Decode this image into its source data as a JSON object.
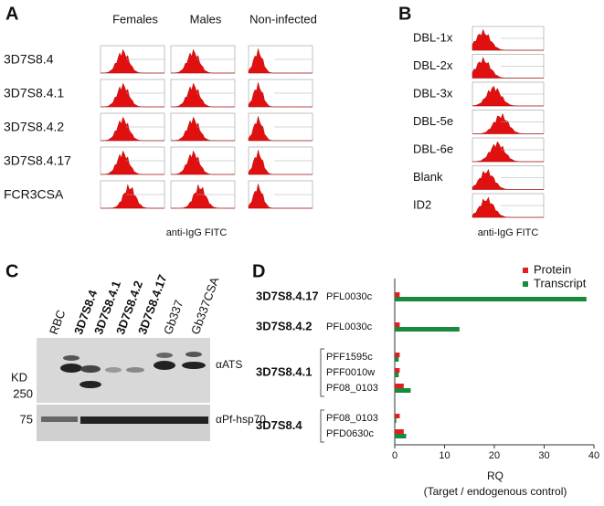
{
  "panels": {
    "A": {
      "label": "A",
      "columns": [
        "Females",
        "Males",
        "Non-infected"
      ],
      "rows": [
        "3D7S8.4",
        "3D7S8.4.1",
        "3D7S8.4.2",
        "3D7S8.4.17",
        "FCR3CSA"
      ],
      "xlabel": "anti-IgG FITC"
    },
    "B": {
      "label": "B",
      "rows": [
        "DBL-1x",
        "DBL-2x",
        "DBL-3x",
        "DBL-5e",
        "DBL-6e",
        "Blank",
        "ID2"
      ],
      "xlabel": "anti-IgG FITC"
    },
    "C": {
      "label": "C",
      "lanes": [
        {
          "label": "RBC",
          "bold": false
        },
        {
          "label": "3D7S8.4",
          "bold": true
        },
        {
          "label": "3D7S8.4.1",
          "bold": true
        },
        {
          "label": "3D7S8.4.2",
          "bold": true
        },
        {
          "label": "3D7S8.4.17",
          "bold": true
        },
        {
          "label": "Gb337",
          "bold": false
        },
        {
          "label": "Gb337CSA",
          "bold": false
        }
      ],
      "unit": "KD",
      "markers": [
        250,
        75
      ],
      "antibodies": [
        "αATS",
        "αPf-hsp70"
      ]
    }
  },
  "chart_data": {
    "type": "bar",
    "panel_label": "D",
    "groups": [
      {
        "name": "3D7S8.4.17",
        "genes": [
          "PFL0030c"
        ]
      },
      {
        "name": "3D7S8.4.2",
        "genes": [
          "PFL0030c"
        ]
      },
      {
        "name": "3D7S8.4.1",
        "genes": [
          "PFF1595c",
          "PFF0010w",
          "PF08_0103"
        ]
      },
      {
        "name": "3D7S8.4",
        "genes": [
          "PF08_0103",
          "PFD0630c"
        ]
      }
    ],
    "series": [
      {
        "name": "Protein",
        "color": "#e02020",
        "values": [
          1,
          1,
          1,
          1,
          1.8,
          1,
          1.8
        ]
      },
      {
        "name": "Transcript",
        "color": "#1a8a3a",
        "values": [
          38.5,
          13,
          0.8,
          0.8,
          3.2,
          0.3,
          2.3
        ]
      }
    ],
    "xlim": [
      0,
      40
    ],
    "xticks": [
      0,
      10,
      20,
      30,
      40
    ],
    "xlabel": "RQ",
    "xlabel_sub": "(Target / endogenous control)",
    "legend": "upper-right"
  }
}
